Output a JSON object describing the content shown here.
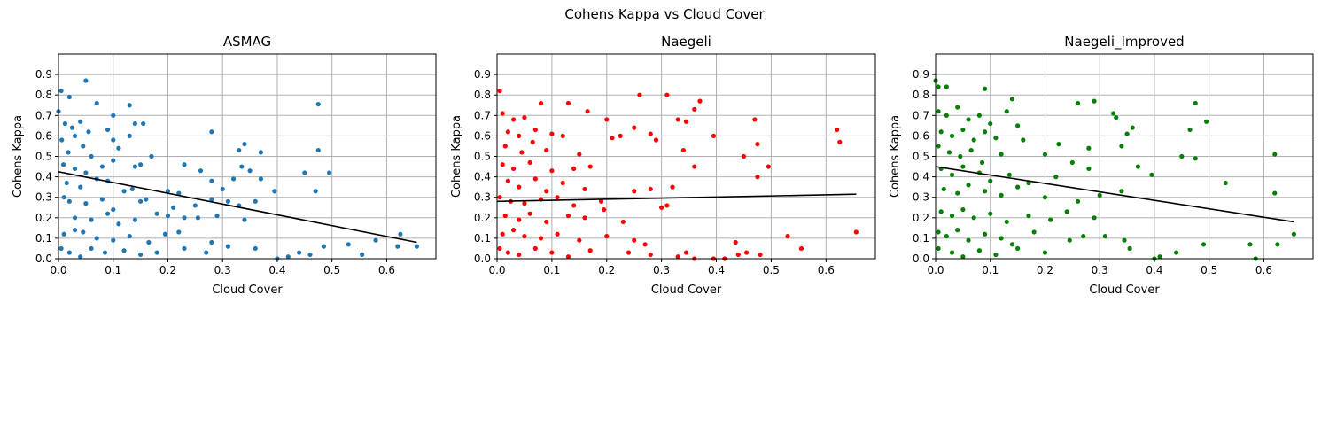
{
  "figure": {
    "title": "Cohens Kappa vs Cloud Cover"
  },
  "chart_data": [
    {
      "type": "scatter",
      "title": "ASMAG",
      "xlabel": "Cloud Cover",
      "ylabel": "Cohens Kappa",
      "xlim": [
        0.0,
        0.69
      ],
      "ylim": [
        0.0,
        1.0
      ],
      "xticks": [
        0.0,
        0.1,
        0.2,
        0.3,
        0.4,
        0.5,
        0.6
      ],
      "yticks": [
        0.0,
        0.1,
        0.2,
        0.3,
        0.4,
        0.5,
        0.6,
        0.7,
        0.8,
        0.9
      ],
      "grid": true,
      "color": "#1f77b4",
      "trend": {
        "x": [
          0.0,
          0.655
        ],
        "y": [
          0.425,
          0.08
        ],
        "color": "#000000"
      },
      "points": [
        [
          0.005,
          0.82
        ],
        [
          0.05,
          0.87
        ],
        [
          0.02,
          0.79
        ],
        [
          0.07,
          0.76
        ],
        [
          0.13,
          0.75
        ],
        [
          0.475,
          0.755
        ],
        [
          0.0,
          0.72
        ],
        [
          0.012,
          0.66
        ],
        [
          0.025,
          0.64
        ],
        [
          0.03,
          0.6
        ],
        [
          0.04,
          0.67
        ],
        [
          0.055,
          0.62
        ],
        [
          0.09,
          0.63
        ],
        [
          0.1,
          0.7
        ],
        [
          0.14,
          0.66
        ],
        [
          0.155,
          0.66
        ],
        [
          0.28,
          0.62
        ],
        [
          0.006,
          0.58
        ],
        [
          0.018,
          0.52
        ],
        [
          0.045,
          0.55
        ],
        [
          0.06,
          0.5
        ],
        [
          0.1,
          0.58
        ],
        [
          0.11,
          0.54
        ],
        [
          0.13,
          0.6
        ],
        [
          0.17,
          0.5
        ],
        [
          0.34,
          0.56
        ],
        [
          0.33,
          0.53
        ],
        [
          0.37,
          0.52
        ],
        [
          0.475,
          0.53
        ],
        [
          0.009,
          0.46
        ],
        [
          0.03,
          0.44
        ],
        [
          0.05,
          0.42
        ],
        [
          0.08,
          0.45
        ],
        [
          0.1,
          0.48
        ],
        [
          0.14,
          0.45
        ],
        [
          0.15,
          0.46
        ],
        [
          0.23,
          0.46
        ],
        [
          0.26,
          0.43
        ],
        [
          0.335,
          0.45
        ],
        [
          0.35,
          0.43
        ],
        [
          0.45,
          0.42
        ],
        [
          0.495,
          0.42
        ],
        [
          0.015,
          0.37
        ],
        [
          0.04,
          0.35
        ],
        [
          0.07,
          0.39
        ],
        [
          0.09,
          0.38
        ],
        [
          0.12,
          0.33
        ],
        [
          0.135,
          0.34
        ],
        [
          0.2,
          0.33
        ],
        [
          0.22,
          0.32
        ],
        [
          0.28,
          0.38
        ],
        [
          0.3,
          0.34
        ],
        [
          0.32,
          0.39
        ],
        [
          0.37,
          0.39
        ],
        [
          0.395,
          0.33
        ],
        [
          0.47,
          0.33
        ],
        [
          0.01,
          0.3
        ],
        [
          0.02,
          0.28
        ],
        [
          0.05,
          0.27
        ],
        [
          0.08,
          0.29
        ],
        [
          0.1,
          0.24
        ],
        [
          0.15,
          0.28
        ],
        [
          0.16,
          0.29
        ],
        [
          0.21,
          0.25
        ],
        [
          0.25,
          0.26
        ],
        [
          0.28,
          0.29
        ],
        [
          0.31,
          0.28
        ],
        [
          0.33,
          0.26
        ],
        [
          0.36,
          0.28
        ],
        [
          0.03,
          0.2
        ],
        [
          0.06,
          0.19
        ],
        [
          0.09,
          0.22
        ],
        [
          0.11,
          0.17
        ],
        [
          0.14,
          0.19
        ],
        [
          0.18,
          0.22
        ],
        [
          0.2,
          0.21
        ],
        [
          0.23,
          0.2
        ],
        [
          0.255,
          0.2
        ],
        [
          0.29,
          0.21
        ],
        [
          0.34,
          0.19
        ],
        [
          0.01,
          0.12
        ],
        [
          0.03,
          0.14
        ],
        [
          0.045,
          0.13
        ],
        [
          0.07,
          0.1
        ],
        [
          0.1,
          0.09
        ],
        [
          0.13,
          0.11
        ],
        [
          0.165,
          0.08
        ],
        [
          0.195,
          0.12
        ],
        [
          0.22,
          0.13
        ],
        [
          0.28,
          0.08
        ],
        [
          0.31,
          0.06
        ],
        [
          0.36,
          0.05
        ],
        [
          0.485,
          0.06
        ],
        [
          0.53,
          0.07
        ],
        [
          0.58,
          0.09
        ],
        [
          0.625,
          0.12
        ],
        [
          0.005,
          0.05
        ],
        [
          0.02,
          0.03
        ],
        [
          0.04,
          0.01
        ],
        [
          0.06,
          0.05
        ],
        [
          0.085,
          0.03
        ],
        [
          0.12,
          0.04
        ],
        [
          0.15,
          0.02
        ],
        [
          0.18,
          0.03
        ],
        [
          0.23,
          0.05
        ],
        [
          0.27,
          0.03
        ],
        [
          0.4,
          0.0
        ],
        [
          0.42,
          0.01
        ],
        [
          0.44,
          0.03
        ],
        [
          0.46,
          0.02
        ],
        [
          0.555,
          0.02
        ],
        [
          0.62,
          0.06
        ],
        [
          0.655,
          0.06
        ]
      ]
    },
    {
      "type": "scatter",
      "title": "Naegeli",
      "xlabel": "Cloud Cover",
      "ylabel": "Cohens Kappa",
      "xlim": [
        0.0,
        0.69
      ],
      "ylim": [
        0.0,
        1.0
      ],
      "xticks": [
        0.0,
        0.1,
        0.2,
        0.3,
        0.4,
        0.5,
        0.6
      ],
      "yticks": [
        0.0,
        0.1,
        0.2,
        0.3,
        0.4,
        0.5,
        0.6,
        0.7,
        0.8,
        0.9
      ],
      "grid": true,
      "color": "#ff0000",
      "trend": {
        "x": [
          0.0,
          0.655
        ],
        "y": [
          0.28,
          0.315
        ],
        "color": "#000000"
      },
      "points": [
        [
          0.005,
          0.82
        ],
        [
          0.26,
          0.8
        ],
        [
          0.31,
          0.8
        ],
        [
          0.08,
          0.76
        ],
        [
          0.13,
          0.76
        ],
        [
          0.37,
          0.77
        ],
        [
          0.165,
          0.72
        ],
        [
          0.36,
          0.73
        ],
        [
          0.47,
          0.68
        ],
        [
          0.01,
          0.71
        ],
        [
          0.03,
          0.68
        ],
        [
          0.05,
          0.69
        ],
        [
          0.2,
          0.68
        ],
        [
          0.33,
          0.68
        ],
        [
          0.345,
          0.67
        ],
        [
          0.02,
          0.62
        ],
        [
          0.04,
          0.6
        ],
        [
          0.07,
          0.63
        ],
        [
          0.1,
          0.61
        ],
        [
          0.12,
          0.6
        ],
        [
          0.25,
          0.64
        ],
        [
          0.28,
          0.61
        ],
        [
          0.395,
          0.6
        ],
        [
          0.62,
          0.63
        ],
        [
          0.625,
          0.57
        ],
        [
          0.015,
          0.55
        ],
        [
          0.045,
          0.52
        ],
        [
          0.065,
          0.57
        ],
        [
          0.09,
          0.53
        ],
        [
          0.15,
          0.51
        ],
        [
          0.21,
          0.59
        ],
        [
          0.29,
          0.58
        ],
        [
          0.34,
          0.53
        ],
        [
          0.475,
          0.56
        ],
        [
          0.01,
          0.46
        ],
        [
          0.03,
          0.44
        ],
        [
          0.06,
          0.47
        ],
        [
          0.1,
          0.43
        ],
        [
          0.14,
          0.44
        ],
        [
          0.17,
          0.45
        ],
        [
          0.225,
          0.6
        ],
        [
          0.36,
          0.45
        ],
        [
          0.45,
          0.5
        ],
        [
          0.495,
          0.45
        ],
        [
          0.02,
          0.38
        ],
        [
          0.04,
          0.35
        ],
        [
          0.07,
          0.39
        ],
        [
          0.09,
          0.33
        ],
        [
          0.12,
          0.37
        ],
        [
          0.16,
          0.34
        ],
        [
          0.28,
          0.34
        ],
        [
          0.32,
          0.35
        ],
        [
          0.475,
          0.4
        ],
        [
          0.005,
          0.3
        ],
        [
          0.025,
          0.28
        ],
        [
          0.05,
          0.27
        ],
        [
          0.08,
          0.29
        ],
        [
          0.11,
          0.3
        ],
        [
          0.14,
          0.26
        ],
        [
          0.19,
          0.28
        ],
        [
          0.25,
          0.33
        ],
        [
          0.3,
          0.25
        ],
        [
          0.31,
          0.26
        ],
        [
          0.015,
          0.21
        ],
        [
          0.04,
          0.19
        ],
        [
          0.06,
          0.22
        ],
        [
          0.09,
          0.18
        ],
        [
          0.13,
          0.21
        ],
        [
          0.16,
          0.2
        ],
        [
          0.195,
          0.24
        ],
        [
          0.23,
          0.18
        ],
        [
          0.01,
          0.12
        ],
        [
          0.03,
          0.14
        ],
        [
          0.05,
          0.11
        ],
        [
          0.08,
          0.1
        ],
        [
          0.11,
          0.12
        ],
        [
          0.15,
          0.09
        ],
        [
          0.2,
          0.11
        ],
        [
          0.25,
          0.09
        ],
        [
          0.27,
          0.07
        ],
        [
          0.53,
          0.11
        ],
        [
          0.555,
          0.05
        ],
        [
          0.655,
          0.13
        ],
        [
          0.005,
          0.05
        ],
        [
          0.02,
          0.03
        ],
        [
          0.04,
          0.02
        ],
        [
          0.07,
          0.05
        ],
        [
          0.1,
          0.03
        ],
        [
          0.13,
          0.01
        ],
        [
          0.17,
          0.04
        ],
        [
          0.24,
          0.03
        ],
        [
          0.28,
          0.02
        ],
        [
          0.33,
          0.01
        ],
        [
          0.345,
          0.03
        ],
        [
          0.36,
          0.0
        ],
        [
          0.395,
          0.0
        ],
        [
          0.415,
          0.0
        ],
        [
          0.435,
          0.08
        ],
        [
          0.44,
          0.02
        ],
        [
          0.455,
          0.03
        ],
        [
          0.48,
          0.02
        ]
      ]
    },
    {
      "type": "scatter",
      "title": "Naegeli_Improved",
      "xlabel": "Cloud Cover",
      "ylabel": "Cohens Kappa",
      "xlim": [
        0.0,
        0.69
      ],
      "ylim": [
        0.0,
        1.0
      ],
      "xticks": [
        0.0,
        0.1,
        0.2,
        0.3,
        0.4,
        0.5,
        0.6
      ],
      "yticks": [
        0.0,
        0.1,
        0.2,
        0.3,
        0.4,
        0.5,
        0.6,
        0.7,
        0.8,
        0.9
      ],
      "grid": true,
      "color": "#008000",
      "trend": {
        "x": [
          0.0,
          0.655
        ],
        "y": [
          0.45,
          0.18
        ],
        "color": "#000000"
      },
      "points": [
        [
          0.0,
          0.87
        ],
        [
          0.005,
          0.84
        ],
        [
          0.02,
          0.84
        ],
        [
          0.09,
          0.83
        ],
        [
          0.14,
          0.78
        ],
        [
          0.29,
          0.77
        ],
        [
          0.26,
          0.76
        ],
        [
          0.475,
          0.76
        ],
        [
          0.005,
          0.72
        ],
        [
          0.02,
          0.7
        ],
        [
          0.04,
          0.74
        ],
        [
          0.06,
          0.68
        ],
        [
          0.08,
          0.7
        ],
        [
          0.1,
          0.66
        ],
        [
          0.13,
          0.72
        ],
        [
          0.325,
          0.71
        ],
        [
          0.33,
          0.69
        ],
        [
          0.36,
          0.64
        ],
        [
          0.465,
          0.63
        ],
        [
          0.495,
          0.67
        ],
        [
          0.01,
          0.62
        ],
        [
          0.03,
          0.6
        ],
        [
          0.05,
          0.63
        ],
        [
          0.07,
          0.58
        ],
        [
          0.09,
          0.62
        ],
        [
          0.11,
          0.59
        ],
        [
          0.15,
          0.65
        ],
        [
          0.16,
          0.58
        ],
        [
          0.225,
          0.56
        ],
        [
          0.35,
          0.61
        ],
        [
          0.005,
          0.55
        ],
        [
          0.025,
          0.52
        ],
        [
          0.045,
          0.5
        ],
        [
          0.065,
          0.53
        ],
        [
          0.085,
          0.47
        ],
        [
          0.12,
          0.51
        ],
        [
          0.2,
          0.51
        ],
        [
          0.25,
          0.47
        ],
        [
          0.28,
          0.54
        ],
        [
          0.34,
          0.55
        ],
        [
          0.45,
          0.5
        ],
        [
          0.475,
          0.49
        ],
        [
          0.62,
          0.51
        ],
        [
          0.01,
          0.44
        ],
        [
          0.03,
          0.41
        ],
        [
          0.05,
          0.45
        ],
        [
          0.08,
          0.42
        ],
        [
          0.1,
          0.38
        ],
        [
          0.135,
          0.41
        ],
        [
          0.17,
          0.37
        ],
        [
          0.22,
          0.4
        ],
        [
          0.28,
          0.44
        ],
        [
          0.37,
          0.45
        ],
        [
          0.395,
          0.41
        ],
        [
          0.53,
          0.37
        ],
        [
          0.015,
          0.34
        ],
        [
          0.04,
          0.32
        ],
        [
          0.06,
          0.36
        ],
        [
          0.09,
          0.33
        ],
        [
          0.12,
          0.31
        ],
        [
          0.15,
          0.35
        ],
        [
          0.2,
          0.3
        ],
        [
          0.26,
          0.28
        ],
        [
          0.3,
          0.31
        ],
        [
          0.34,
          0.33
        ],
        [
          0.62,
          0.32
        ],
        [
          0.01,
          0.23
        ],
        [
          0.03,
          0.21
        ],
        [
          0.05,
          0.24
        ],
        [
          0.07,
          0.2
        ],
        [
          0.1,
          0.22
        ],
        [
          0.13,
          0.18
        ],
        [
          0.17,
          0.21
        ],
        [
          0.21,
          0.19
        ],
        [
          0.24,
          0.23
        ],
        [
          0.29,
          0.2
        ],
        [
          0.005,
          0.13
        ],
        [
          0.02,
          0.11
        ],
        [
          0.04,
          0.14
        ],
        [
          0.06,
          0.09
        ],
        [
          0.09,
          0.12
        ],
        [
          0.12,
          0.1
        ],
        [
          0.14,
          0.07
        ],
        [
          0.18,
          0.13
        ],
        [
          0.245,
          0.09
        ],
        [
          0.27,
          0.11
        ],
        [
          0.31,
          0.11
        ],
        [
          0.345,
          0.09
        ],
        [
          0.355,
          0.05
        ],
        [
          0.49,
          0.07
        ],
        [
          0.575,
          0.07
        ],
        [
          0.625,
          0.07
        ],
        [
          0.655,
          0.12
        ],
        [
          0.005,
          0.05
        ],
        [
          0.03,
          0.03
        ],
        [
          0.05,
          0.01
        ],
        [
          0.08,
          0.04
        ],
        [
          0.11,
          0.02
        ],
        [
          0.15,
          0.05
        ],
        [
          0.2,
          0.03
        ],
        [
          0.4,
          0.0
        ],
        [
          0.41,
          0.01
        ],
        [
          0.44,
          0.03
        ],
        [
          0.585,
          0.0
        ]
      ]
    }
  ]
}
